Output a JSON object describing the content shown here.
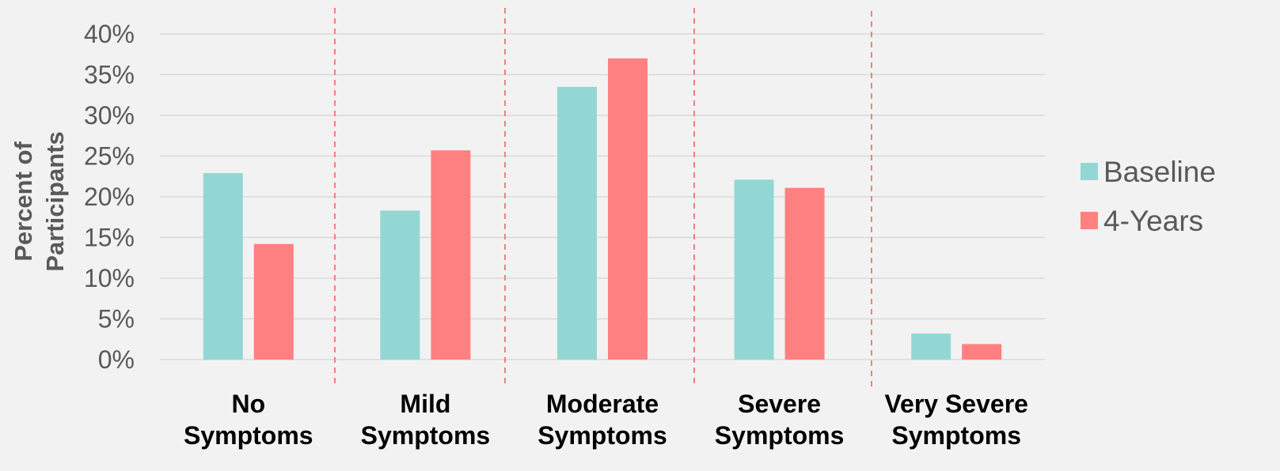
{
  "chart_data": {
    "type": "bar",
    "title": "",
    "xlabel": "",
    "ylabel": "Percent of Participants",
    "ylabel_lines": [
      "Percent of",
      "Participants"
    ],
    "ylim": [
      0,
      40
    ],
    "yticks": [
      0,
      5,
      10,
      15,
      20,
      25,
      30,
      35,
      40
    ],
    "ytick_labels": [
      "0%",
      "5%",
      "10%",
      "15%",
      "20%",
      "25%",
      "30%",
      "35%",
      "40%"
    ],
    "categories": [
      "No Symptoms",
      "Mild Symptoms",
      "Moderate Symptoms",
      "Severe Symptoms",
      "Very Severe Symptoms"
    ],
    "category_lines": [
      [
        "No",
        "Symptoms"
      ],
      [
        "Mild",
        "Symptoms"
      ],
      [
        "Moderate",
        "Symptoms"
      ],
      [
        "Severe",
        "Symptoms"
      ],
      [
        "Very Severe",
        "Symptoms"
      ]
    ],
    "series": [
      {
        "name": "Baseline",
        "color": "#93d7d5",
        "values": [
          22.9,
          18.3,
          33.5,
          22.1,
          3.2
        ]
      },
      {
        "name": "4-Years",
        "color": "#fe8080",
        "values": [
          14.2,
          25.7,
          37.0,
          21.1,
          1.9
        ]
      }
    ],
    "grid": true,
    "legend": "right",
    "separator_color": "#f08080",
    "text_color": "#595959",
    "gridline_color": "#d9d9d9"
  }
}
